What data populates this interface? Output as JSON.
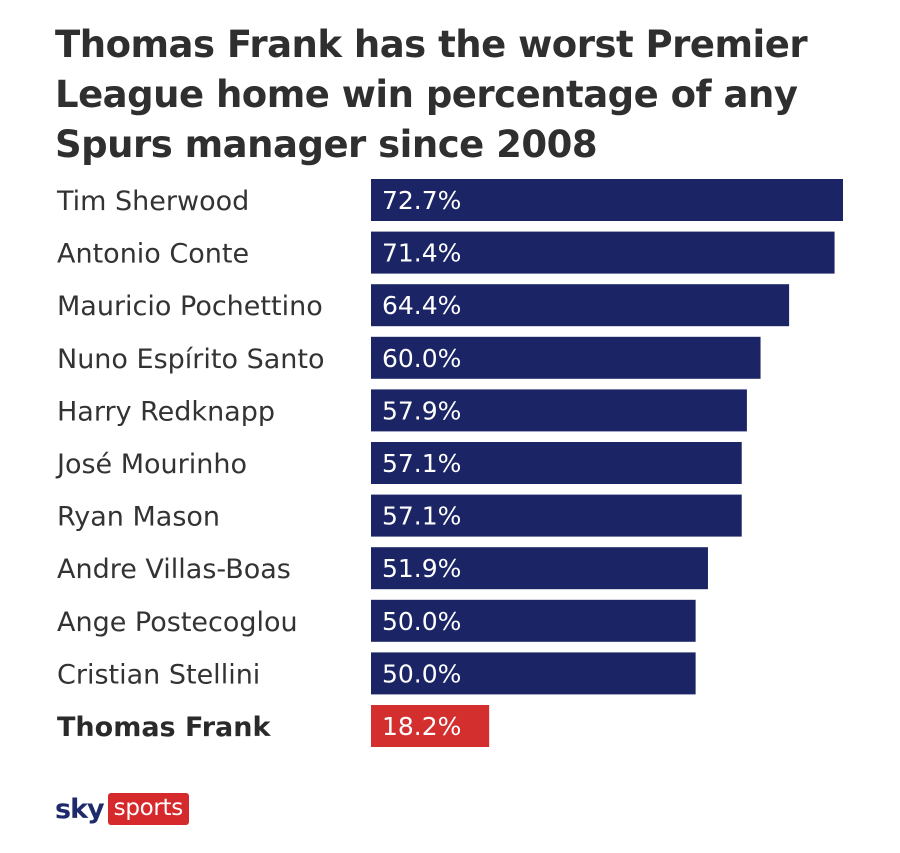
{
  "title": "Thomas Frank has the worst Premier League home win percentage of any Spurs manager since 2008",
  "colors": {
    "bar": "#1b2565",
    "highlight": "#d32f2f"
  },
  "logo": {
    "sky": "sky",
    "sports": "sports"
  },
  "chart_data": {
    "type": "bar",
    "orientation": "horizontal",
    "categories": [
      "Tim Sherwood",
      "Antonio Conte",
      "Mauricio Pochettino",
      "Nuno Espírito Santo",
      "Harry Redknapp",
      "José Mourinho",
      "Ryan Mason",
      "Andre Villas-Boas",
      "Ange Postecoglou",
      "Cristian Stellini",
      "Thomas Frank"
    ],
    "values": [
      72.7,
      71.4,
      64.4,
      60.0,
      57.9,
      57.1,
      57.1,
      51.9,
      50.0,
      50.0,
      18.2
    ],
    "value_labels": [
      "72.7%",
      "71.4%",
      "64.4%",
      "60.0%",
      "57.9%",
      "57.1%",
      "57.1%",
      "51.9%",
      "50.0%",
      "50.0%",
      "18.2%"
    ],
    "highlight": "Thomas Frank",
    "xlim": [
      0,
      72.7
    ],
    "grid": false,
    "legend": "none"
  }
}
